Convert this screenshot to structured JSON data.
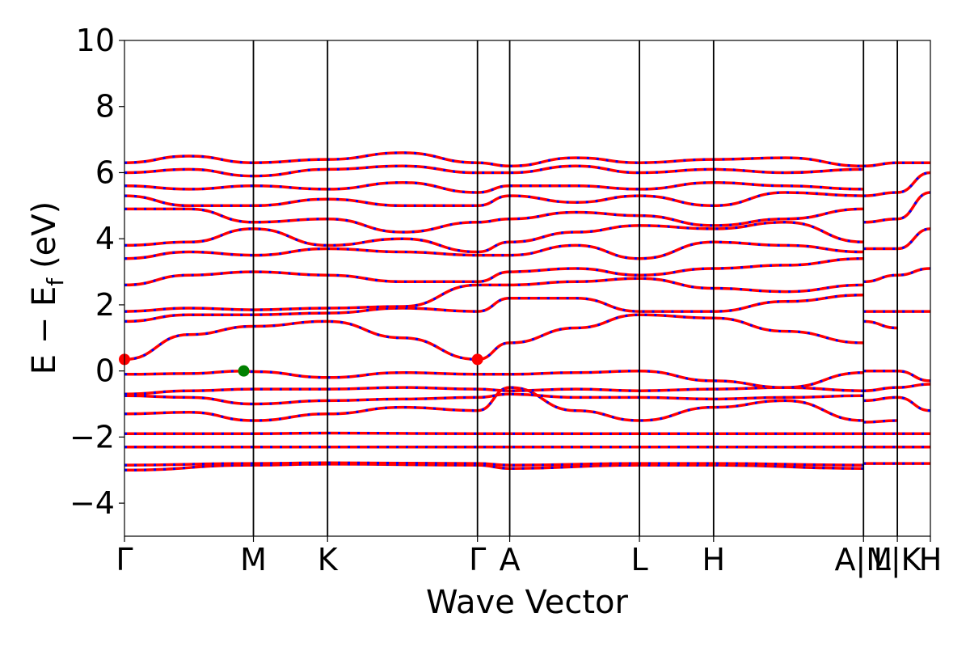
{
  "chart_data": {
    "type": "line",
    "xlabel": "Wave Vector",
    "ylabel": "E − E",
    "ylabel_subscript": "f",
    "ylabel_unit": "(eV)",
    "ylim": [
      -5,
      10
    ],
    "yticks": [
      -4,
      -2,
      0,
      2,
      4,
      6,
      8,
      10
    ],
    "ytick_labels": [
      "−4",
      "−2",
      "0",
      "2",
      "4",
      "6",
      "8",
      "10"
    ],
    "xlim": [
      0,
      1
    ],
    "kpoints": [
      {
        "label": "Γ",
        "x": 0.0
      },
      {
        "label": "M",
        "x": 0.16
      },
      {
        "label": "K",
        "x": 0.252
      },
      {
        "label": "Γ",
        "x": 0.438
      },
      {
        "label": "A",
        "x": 0.478
      },
      {
        "label": "L",
        "x": 0.639
      },
      {
        "label": "H",
        "x": 0.731
      },
      {
        "label": "A|M",
        "x": 0.917
      },
      {
        "label": "L|K",
        "x": 0.959
      },
      {
        "label": "H",
        "x": 1.0
      }
    ],
    "grid": false,
    "series_colors": {
      "spin_up": "#ff0000",
      "spin_down": "#0000ff"
    },
    "series_style": {
      "spin_up": "solid",
      "spin_down": "dotted"
    },
    "markers": [
      {
        "kind": "cbm",
        "x": 0.0,
        "y": 0.35,
        "color": "#ff0000"
      },
      {
        "kind": "cbm",
        "x": 0.438,
        "y": 0.35,
        "color": "#ff0000"
      },
      {
        "kind": "vbm",
        "x": 0.148,
        "y": 0.0,
        "color": "#008000"
      }
    ],
    "bands": [
      {
        "x": [
          0,
          0.16,
          0.252,
          0.438,
          0.478,
          0.639,
          0.731,
          0.917
        ],
        "y": [
          -3.0,
          -2.85,
          -2.82,
          -2.85,
          -2.95,
          -2.85,
          -2.85,
          -2.95
        ]
      },
      {
        "x": [
          0,
          0.16,
          0.252,
          0.438,
          0.478,
          0.639,
          0.731,
          0.917
        ],
        "y": [
          -2.85,
          -2.8,
          -2.78,
          -2.8,
          -2.85,
          -2.8,
          -2.8,
          -2.85
        ]
      },
      {
        "x": [
          0,
          0.16,
          0.252,
          0.438,
          0.478,
          0.639,
          0.731,
          0.917
        ],
        "y": [
          -2.3,
          -2.3,
          -2.3,
          -2.3,
          -2.3,
          -2.3,
          -2.3,
          -2.3
        ]
      },
      {
        "x": [
          0,
          0.16,
          0.252,
          0.438,
          0.478,
          0.639,
          0.731,
          0.917
        ],
        "y": [
          -1.9,
          -1.9,
          -1.88,
          -1.9,
          -1.9,
          -1.9,
          -1.9,
          -1.9
        ]
      },
      {
        "x": [
          0,
          0.08,
          0.16,
          0.252,
          0.345,
          0.438,
          0.478,
          0.56,
          0.639,
          0.731,
          0.82,
          0.917
        ],
        "y": [
          -1.3,
          -1.25,
          -1.5,
          -1.3,
          -1.1,
          -1.2,
          -0.5,
          -1.2,
          -1.5,
          -1.1,
          -0.9,
          -1.5
        ]
      },
      {
        "x": [
          0,
          0.08,
          0.16,
          0.252,
          0.345,
          0.438,
          0.478,
          0.56,
          0.639,
          0.731,
          0.82,
          0.917
        ],
        "y": [
          -0.75,
          -0.8,
          -1.0,
          -0.9,
          -0.85,
          -0.8,
          -0.7,
          -0.8,
          -0.8,
          -0.85,
          -0.8,
          -0.75
        ]
      },
      {
        "x": [
          0,
          0.08,
          0.16,
          0.252,
          0.345,
          0.438,
          0.478,
          0.56,
          0.639,
          0.731,
          0.82,
          0.917
        ],
        "y": [
          -0.7,
          -0.6,
          -0.55,
          -0.55,
          -0.5,
          -0.55,
          -0.6,
          -0.55,
          -0.6,
          -0.55,
          -0.5,
          -0.6
        ]
      },
      {
        "x": [
          0,
          0.08,
          0.148,
          0.16,
          0.252,
          0.345,
          0.438,
          0.478,
          0.56,
          0.639,
          0.731,
          0.82,
          0.917
        ],
        "y": [
          -0.1,
          -0.08,
          0.0,
          -0.02,
          -0.2,
          -0.05,
          -0.1,
          -0.1,
          -0.05,
          0.0,
          -0.3,
          -0.5,
          -0.05
        ]
      },
      {
        "x": [
          0,
          0.08,
          0.16,
          0.252,
          0.345,
          0.438,
          0.478,
          0.56,
          0.639,
          0.731,
          0.82,
          0.917
        ],
        "y": [
          0.35,
          1.1,
          1.35,
          1.5,
          1.0,
          0.35,
          0.85,
          1.3,
          1.7,
          1.6,
          1.2,
          0.85
        ]
      },
      {
        "x": [
          0,
          0.08,
          0.16,
          0.252,
          0.345,
          0.438,
          0.478,
          0.56,
          0.639,
          0.731,
          0.82,
          0.917
        ],
        "y": [
          1.5,
          1.7,
          1.7,
          1.75,
          1.9,
          1.8,
          2.2,
          2.2,
          1.8,
          1.8,
          2.1,
          2.3
        ]
      },
      {
        "x": [
          0,
          0.08,
          0.16,
          0.252,
          0.345,
          0.438,
          0.478,
          0.56,
          0.639,
          0.731,
          0.82,
          0.917
        ],
        "y": [
          1.8,
          1.9,
          1.85,
          1.9,
          1.95,
          2.6,
          2.6,
          2.7,
          2.8,
          2.5,
          2.4,
          2.6
        ]
      },
      {
        "x": [
          0,
          0.08,
          0.16,
          0.252,
          0.345,
          0.438,
          0.478,
          0.56,
          0.639,
          0.731,
          0.82,
          0.917
        ],
        "y": [
          2.6,
          2.9,
          3.0,
          2.9,
          2.7,
          2.7,
          3.0,
          3.1,
          2.9,
          3.1,
          3.2,
          3.4
        ]
      },
      {
        "x": [
          0,
          0.08,
          0.16,
          0.252,
          0.345,
          0.438,
          0.478,
          0.56,
          0.639,
          0.731,
          0.82,
          0.917
        ],
        "y": [
          3.4,
          3.6,
          3.5,
          3.7,
          3.6,
          3.5,
          3.5,
          3.8,
          3.4,
          3.9,
          3.8,
          3.6
        ]
      },
      {
        "x": [
          0,
          0.08,
          0.16,
          0.252,
          0.345,
          0.438,
          0.478,
          0.56,
          0.639,
          0.731,
          0.82,
          0.917
        ],
        "y": [
          3.8,
          3.9,
          4.3,
          3.8,
          4.0,
          3.6,
          3.9,
          4.2,
          4.4,
          4.3,
          4.5,
          3.9
        ]
      },
      {
        "x": [
          0,
          0.08,
          0.16,
          0.252,
          0.345,
          0.438,
          0.478,
          0.56,
          0.639,
          0.731,
          0.82,
          0.917
        ],
        "y": [
          4.9,
          4.9,
          4.5,
          4.6,
          4.2,
          4.5,
          4.6,
          4.8,
          4.7,
          4.4,
          4.6,
          4.9
        ]
      },
      {
        "x": [
          0,
          0.08,
          0.16,
          0.252,
          0.345,
          0.438,
          0.478,
          0.56,
          0.639,
          0.731,
          0.82,
          0.917
        ],
        "y": [
          5.3,
          5.0,
          5.0,
          5.2,
          5.0,
          5.0,
          5.3,
          5.1,
          5.3,
          5.0,
          5.4,
          5.3
        ]
      },
      {
        "x": [
          0,
          0.08,
          0.16,
          0.252,
          0.345,
          0.438,
          0.478,
          0.56,
          0.639,
          0.731,
          0.82,
          0.917
        ],
        "y": [
          5.6,
          5.5,
          5.6,
          5.5,
          5.7,
          5.4,
          5.6,
          5.6,
          5.5,
          5.7,
          5.6,
          5.5
        ]
      },
      {
        "x": [
          0,
          0.08,
          0.16,
          0.252,
          0.345,
          0.438,
          0.478,
          0.56,
          0.639,
          0.731,
          0.82,
          0.917
        ],
        "y": [
          6.0,
          6.1,
          5.9,
          6.1,
          6.2,
          6.0,
          6.0,
          6.2,
          6.0,
          6.1,
          6.0,
          6.1
        ]
      },
      {
        "x": [
          0,
          0.08,
          0.16,
          0.252,
          0.345,
          0.438,
          0.478,
          0.56,
          0.639,
          0.731,
          0.82,
          0.917
        ],
        "y": [
          6.3,
          6.5,
          6.3,
          6.4,
          6.6,
          6.3,
          6.2,
          6.45,
          6.3,
          6.4,
          6.45,
          6.2
        ]
      },
      {
        "x": [
          0.917,
          0.959,
          1.0
        ],
        "y": [
          -2.8,
          -2.8,
          -2.8
        ]
      },
      {
        "x": [
          0.917,
          0.959,
          1.0
        ],
        "y": [
          -2.3,
          -2.3,
          -2.3
        ]
      },
      {
        "x": [
          0.917,
          0.959,
          1.0
        ],
        "y": [
          -1.9,
          -1.9,
          -1.9
        ]
      },
      {
        "x": [
          0.917,
          0.959
        ],
        "y": [
          -1.55,
          -1.5
        ]
      },
      {
        "x": [
          0.917,
          0.959,
          1.0
        ],
        "y": [
          -0.9,
          -0.8,
          -1.2
        ]
      },
      {
        "x": [
          0.917,
          0.959,
          1.0
        ],
        "y": [
          -0.6,
          -0.5,
          -0.4
        ]
      },
      {
        "x": [
          0.917,
          0.959,
          1.0
        ],
        "y": [
          0.0,
          0.0,
          -0.3
        ]
      },
      {
        "x": [
          0.917,
          0.959
        ],
        "y": [
          1.5,
          1.3
        ]
      },
      {
        "x": [
          0.917,
          0.959,
          1.0
        ],
        "y": [
          1.8,
          1.8,
          1.8
        ]
      },
      {
        "x": [
          0.917,
          0.959,
          1.0
        ],
        "y": [
          2.7,
          2.9,
          3.1
        ]
      },
      {
        "x": [
          0.917,
          0.959,
          1.0
        ],
        "y": [
          3.7,
          3.7,
          4.3
        ]
      },
      {
        "x": [
          0.917,
          0.959,
          1.0
        ],
        "y": [
          4.5,
          4.6,
          5.4
        ]
      },
      {
        "x": [
          0.917,
          0.959,
          1.0
        ],
        "y": [
          5.3,
          5.4,
          6.0
        ]
      },
      {
        "x": [
          0.917,
          0.959,
          1.0
        ],
        "y": [
          6.2,
          6.3,
          6.3
        ]
      }
    ]
  }
}
